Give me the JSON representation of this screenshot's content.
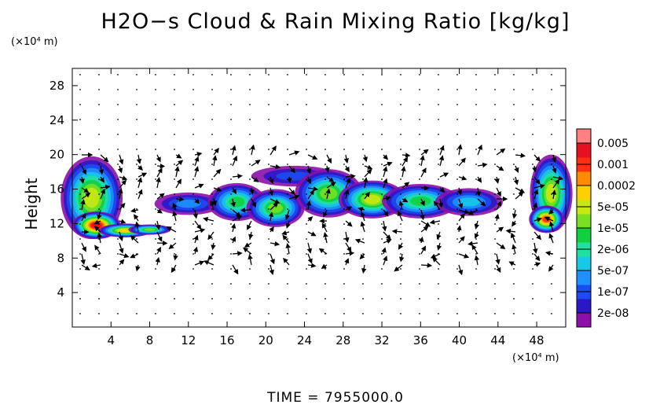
{
  "title": "H2O−s Cloud & Rain Mixing Ratio [kg/kg]",
  "y_unit": "(×10⁴ m)",
  "x_unit": "(×10⁴ m)",
  "time_label": "TIME = 7955000.0",
  "chart_data": {
    "type": "heatmap",
    "title": "H2O−s Cloud & Rain Mixing Ratio [kg/kg]",
    "xlabel": "",
    "ylabel": "Height",
    "x_unit": "×10⁴ m",
    "y_unit": "×10⁴ m",
    "xlim": [
      0,
      51
    ],
    "ylim": [
      0,
      30
    ],
    "xticks": [
      "4",
      "8",
      "12",
      "16",
      "20",
      "24",
      "28",
      "32",
      "36",
      "40",
      "44",
      "48"
    ],
    "yticks": [
      "4",
      "8",
      "12",
      "16",
      "20",
      "24",
      "28"
    ],
    "colorbar": {
      "labels": [
        "0.005",
        "0.001",
        "0.0002",
        "5e-05",
        "1e-05",
        "2e-06",
        "5e-07",
        "1e-07",
        "2e-08"
      ],
      "colors": [
        "#8b0fa8",
        "#2a18c8",
        "#1a4cf0",
        "#1e90ff",
        "#18c8e8",
        "#20e0a0",
        "#10d040",
        "#78e020",
        "#c8e810",
        "#ffd000",
        "#ff8c00",
        "#ff3010",
        "#e81020",
        "#ff8080"
      ]
    },
    "cloud_regions": [
      {
        "x": 2.0,
        "y": 15.0,
        "rx": 3.2,
        "ry": 4.8,
        "level": 8
      },
      {
        "x": 2.5,
        "y": 11.8,
        "rx": 2.5,
        "ry": 1.6,
        "level": 12
      },
      {
        "x": 5.5,
        "y": 11.2,
        "rx": 2.8,
        "ry": 0.8,
        "level": 9
      },
      {
        "x": 8.0,
        "y": 11.3,
        "rx": 2.2,
        "ry": 0.6,
        "level": 7
      },
      {
        "x": 12.0,
        "y": 14.3,
        "rx": 3.5,
        "ry": 1.3,
        "level": 3
      },
      {
        "x": 17.0,
        "y": 14.5,
        "rx": 3.0,
        "ry": 2.2,
        "level": 6
      },
      {
        "x": 21.0,
        "y": 13.8,
        "rx": 3.0,
        "ry": 2.2,
        "level": 7
      },
      {
        "x": 23.0,
        "y": 17.5,
        "rx": 4.5,
        "ry": 1.2,
        "level": 2
      },
      {
        "x": 26.5,
        "y": 15.5,
        "rx": 3.5,
        "ry": 2.8,
        "level": 7
      },
      {
        "x": 31.0,
        "y": 14.8,
        "rx": 3.5,
        "ry": 2.2,
        "level": 8
      },
      {
        "x": 36.0,
        "y": 14.6,
        "rx": 4.0,
        "ry": 2.0,
        "level": 6
      },
      {
        "x": 41.0,
        "y": 14.5,
        "rx": 3.5,
        "ry": 1.6,
        "level": 4
      },
      {
        "x": 49.5,
        "y": 15.5,
        "rx": 2.2,
        "ry": 4.5,
        "level": 8
      },
      {
        "x": 49.0,
        "y": 12.5,
        "rx": 1.8,
        "ry": 1.6,
        "level": 11
      }
    ]
  }
}
